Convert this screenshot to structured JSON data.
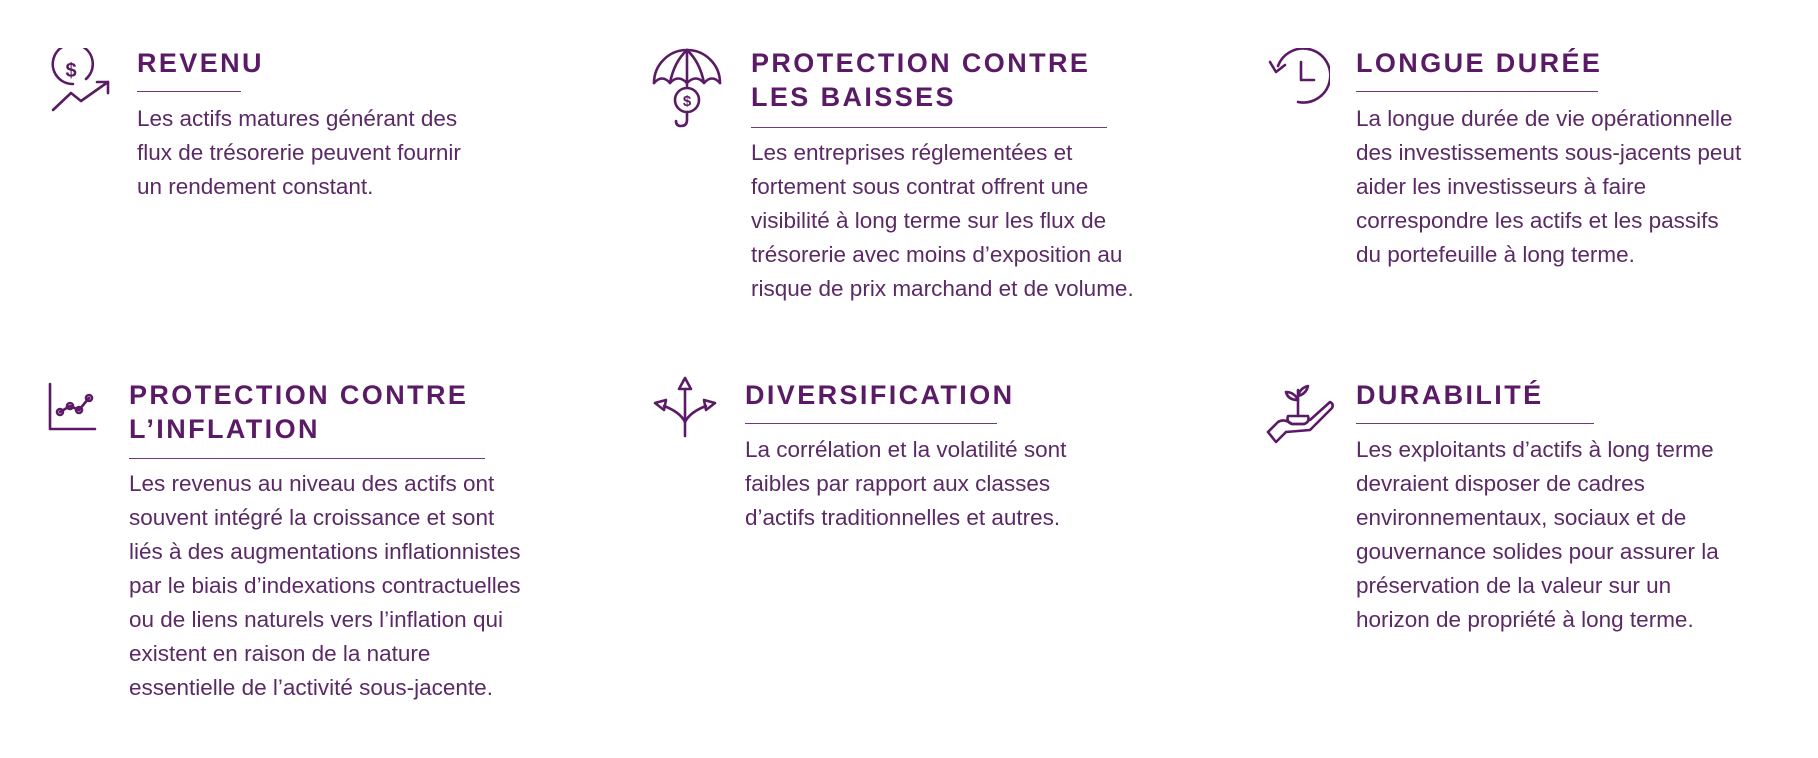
{
  "features": [
    {
      "icon": "dollar-growth-icon",
      "title_lines": [
        "REVENU"
      ],
      "body_lines": [
        "Les actifs matures générant des",
        "flux de trésorerie peuvent fournir",
        "un rendement constant."
      ]
    },
    {
      "icon": "umbrella-dollar-icon",
      "title_lines": [
        "PROTECTION CONTRE",
        "LES BAISSES"
      ],
      "body_lines": [
        "Les entreprises réglementées et",
        "fortement sous contrat offrent une",
        "visibilité à long terme sur les flux de",
        "trésorerie avec moins d’exposition au",
        "risque de prix marchand et de volume."
      ]
    },
    {
      "icon": "clock-history-icon",
      "title_lines": [
        "LONGUE DURÉE"
      ],
      "body_lines": [
        "La longue durée de vie opérationnelle",
        "des investissements sous-jacents peut",
        "aider les investisseurs à faire",
        "correspondre les actifs et les passifs",
        "du portefeuille à long terme."
      ]
    },
    {
      "icon": "line-chart-icon",
      "title_lines": [
        "PROTECTION CONTRE",
        "L’INFLATION"
      ],
      "body_lines": [
        "Les revenus au niveau des actifs ont",
        "souvent intégré la croissance et sont",
        "liés à des augmentations inflationnistes",
        "par le biais d’indexations contractuelles",
        "ou de liens naturels vers l’inflation qui",
        "existent en raison de la nature",
        "essentielle de l’activité sous-jacente."
      ]
    },
    {
      "icon": "diverging-arrows-icon",
      "title_lines": [
        "DIVERSIFICATION"
      ],
      "body_lines": [
        "La corrélation et la volatilité sont",
        "faibles par rapport aux classes",
        "d’actifs traditionnelles et autres."
      ]
    },
    {
      "icon": "hand-plant-icon",
      "title_lines": [
        "DURABILITÉ"
      ],
      "body_lines": [
        "Les exploitants d’actifs à long terme",
        "devraient disposer de cadres",
        "environnementaux, sociaux et de",
        "gouvernance solides pour assurer la",
        "préservation de la valeur sur un",
        "horizon de propriété à long terme."
      ]
    }
  ],
  "colors": {
    "primary": "#5b1a66",
    "text": "#5b2a66",
    "rule": "#6f3a7a"
  }
}
